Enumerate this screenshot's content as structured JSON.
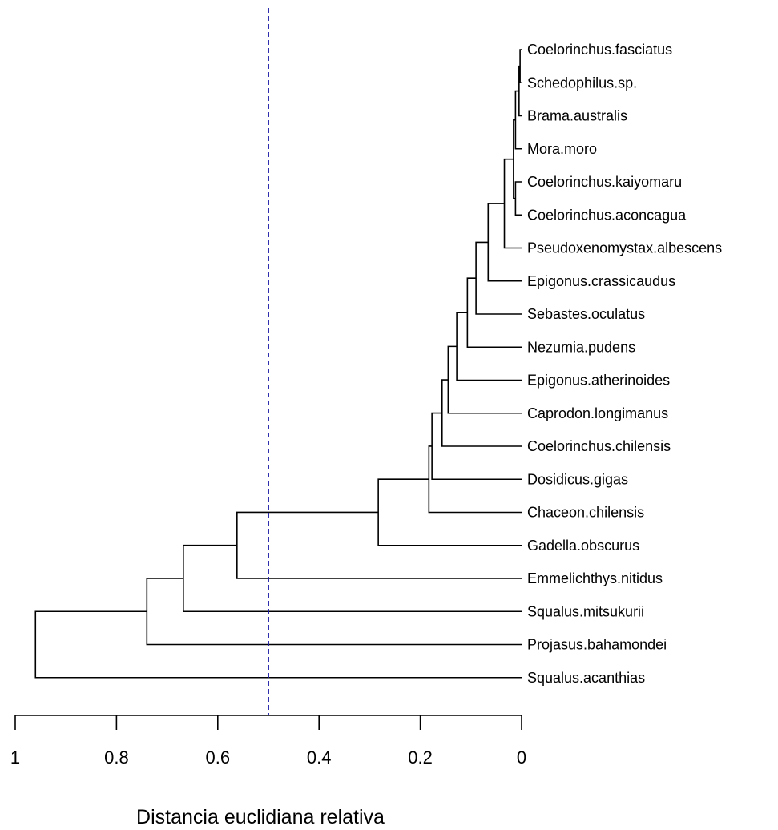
{
  "chart_data": {
    "type": "dendrogram",
    "orientation": "horizontal",
    "x_direction": "reversed",
    "xlabel": "Distancia euclidiana relativa",
    "xlim": [
      1,
      0
    ],
    "ticks": [
      1,
      0.8,
      0.6,
      0.4,
      0.2,
      0
    ],
    "tick_labels": [
      "1",
      "0.8",
      "0.6",
      "0.4",
      "0.2",
      "0"
    ],
    "cut_height": 0.5,
    "leaves": [
      "Coelorinchus.fasciatus",
      "Schedophilus.sp.",
      "Brama.australis",
      "Mora.moro",
      "Coelorinchus.kaiyomaru",
      "Coelorinchus.aconcagua",
      "Pseudoxenomystax.albescens",
      "Epigonus.crassicaudus",
      "Sebastes.oculatus",
      "Nezumia.pudens",
      "Epigonus.atherinoides",
      "Caprodon.longimanus",
      "Coelorinchus.chilensis",
      "Dosidicus.gigas",
      "Chaceon.chilensis",
      "Gadella.obscurus",
      "Emmelichthys.nitidus",
      "Squalus.mitsukurii",
      "Projasus.bahamondei",
      "Squalus.acanthias"
    ],
    "merges": [
      {
        "children": [
          "L0",
          "L1"
        ],
        "height": 0.003
      },
      {
        "children": [
          "M0",
          "L2"
        ],
        "height": 0.005
      },
      {
        "children": [
          "M1",
          "L3"
        ],
        "height": 0.012
      },
      {
        "children": [
          "L4",
          "L5"
        ],
        "height": 0.012
      },
      {
        "children": [
          "M2",
          "M3"
        ],
        "height": 0.016
      },
      {
        "children": [
          "M4",
          "L6"
        ],
        "height": 0.034
      },
      {
        "children": [
          "M5",
          "L7"
        ],
        "height": 0.066
      },
      {
        "children": [
          "M6",
          "L8"
        ],
        "height": 0.09
      },
      {
        "children": [
          "M7",
          "L9"
        ],
        "height": 0.107
      },
      {
        "children": [
          "M8",
          "L10"
        ],
        "height": 0.128
      },
      {
        "children": [
          "M9",
          "L11"
        ],
        "height": 0.145
      },
      {
        "children": [
          "M10",
          "L12"
        ],
        "height": 0.157
      },
      {
        "children": [
          "M11",
          "L13"
        ],
        "height": 0.177
      },
      {
        "children": [
          "M12",
          "L14"
        ],
        "height": 0.183
      },
      {
        "children": [
          "M13",
          "L15"
        ],
        "height": 0.283
      },
      {
        "children": [
          "M14",
          "L16"
        ],
        "height": 0.562
      },
      {
        "children": [
          "M15",
          "L17"
        ],
        "height": 0.668
      },
      {
        "children": [
          "M16",
          "L18"
        ],
        "height": 0.74
      },
      {
        "children": [
          "M17",
          "L19"
        ],
        "height": 0.96
      }
    ]
  }
}
